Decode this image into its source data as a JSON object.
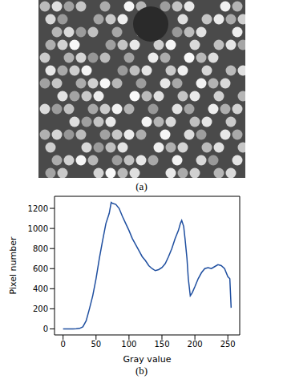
{
  "panel_labels": [
    "(a)",
    "(b)"
  ],
  "chart_data": {
    "type": "line",
    "xlabel": "Gray value",
    "ylabel": "Pixel number",
    "color": "#1f4fa0",
    "xlim": [
      -13,
      268
    ],
    "ylim": [
      -60,
      1320
    ],
    "xticks": [
      0,
      50,
      100,
      150,
      200,
      250
    ],
    "yticks": [
      0,
      200,
      400,
      600,
      800,
      1000,
      1200
    ],
    "x": [
      0,
      5,
      10,
      15,
      20,
      25,
      30,
      35,
      40,
      45,
      50,
      55,
      60,
      65,
      70,
      73,
      75,
      80,
      85,
      90,
      95,
      100,
      105,
      110,
      115,
      120,
      125,
      130,
      135,
      140,
      145,
      150,
      155,
      160,
      165,
      170,
      175,
      178,
      180,
      183,
      185,
      188,
      190,
      193,
      196,
      200,
      205,
      210,
      215,
      220,
      225,
      230,
      235,
      240,
      245,
      250,
      253,
      255
    ],
    "values": [
      0,
      0,
      0,
      0,
      2,
      5,
      20,
      80,
      200,
      330,
      500,
      700,
      880,
      1050,
      1150,
      1260,
      1250,
      1240,
      1200,
      1120,
      1050,
      980,
      900,
      840,
      780,
      720,
      680,
      630,
      600,
      580,
      590,
      610,
      650,
      720,
      800,
      900,
      980,
      1050,
      1080,
      1020,
      900,
      700,
      500,
      330,
      360,
      420,
      500,
      560,
      600,
      610,
      600,
      620,
      640,
      630,
      600,
      520,
      500,
      210
    ]
  }
}
